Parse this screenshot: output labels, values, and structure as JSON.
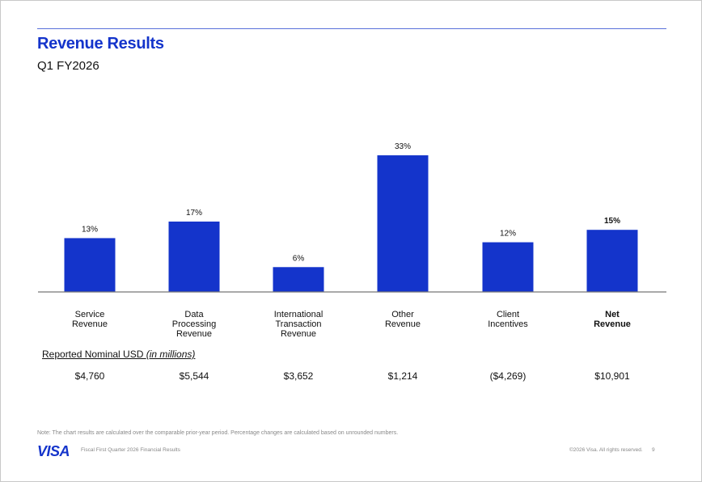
{
  "header": {
    "title": "Revenue Results",
    "subtitle": "Q1 FY2026"
  },
  "chart_data": {
    "type": "bar",
    "categories": [
      "Service Revenue",
      "Data Processing Revenue",
      "International Transaction Revenue",
      "Other Revenue",
      "Client Incentives",
      "Net Revenue"
    ],
    "category_lines": [
      [
        "Service",
        "Revenue"
      ],
      [
        "Data",
        "Processing",
        "Revenue"
      ],
      [
        "International",
        "Transaction",
        "Revenue"
      ],
      [
        "Other",
        "Revenue"
      ],
      [
        "Client",
        "Incentives"
      ],
      [
        "Net",
        "Revenue"
      ]
    ],
    "values": [
      13,
      17,
      6,
      33,
      12,
      15
    ],
    "data_labels": [
      "13%",
      "17%",
      "6%",
      "33%",
      "12%",
      "15%"
    ],
    "unit": "%",
    "ylim": [
      0,
      35
    ],
    "grid": false,
    "bar_color": "#1434cb",
    "highlight_category": "Net Revenue"
  },
  "reported": {
    "label": "Reported Nominal USD ",
    "label_italic": "(in millions)",
    "values": [
      "$4,760",
      "$5,544",
      "$3,652",
      "$1,214",
      "($4,269)",
      "$10,901"
    ]
  },
  "footer": {
    "note": "Note: The chart results are calculated over the comparable prior-year period. Percentage changes are calculated based on unrounded numbers.",
    "logo": "VISA",
    "doc_title": "Fiscal First Quarter 2026 Financial Results",
    "copyright": "©2026 Visa. All rights reserved.",
    "page": "9"
  },
  "colors": {
    "brand": "#1434cb"
  }
}
